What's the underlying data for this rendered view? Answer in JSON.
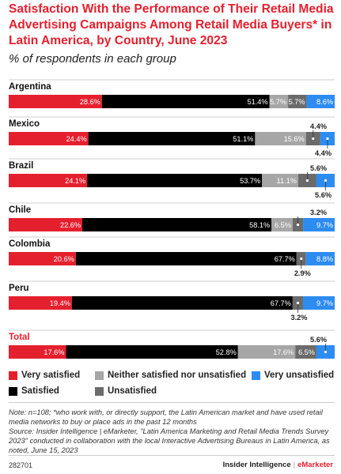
{
  "title": "Satisfaction With the Performance of Their Retail Media Advertising Campaigns Among Retail Media Buyers* in Latin America, by Country, June 2023",
  "subtitle": "% of respondents in each group",
  "colors": {
    "very_satisfied": "#e5202e",
    "satisfied": "#000000",
    "neither": "#a6a6a6",
    "unsatisfied": "#6b6b6b",
    "very_unsatisfied": "#2d8cf0"
  },
  "chart_data": {
    "type": "bar",
    "orientation": "horizontal",
    "stacked": true,
    "categories": [
      "Argentina",
      "Mexico",
      "Brazil",
      "Chile",
      "Colombia",
      "Peru",
      "Total"
    ],
    "series": [
      {
        "name": "Very satisfied",
        "values": [
          28.6,
          24.4,
          24.1,
          22.6,
          20.6,
          19.4,
          17.6
        ]
      },
      {
        "name": "Satisfied",
        "values": [
          51.4,
          51.1,
          53.7,
          58.1,
          67.7,
          67.7,
          52.8
        ]
      },
      {
        "name": "Neither satisfied nor unsatisfied",
        "values": [
          5.7,
          15.6,
          11.1,
          6.5,
          0,
          0,
          17.6
        ]
      },
      {
        "name": "Unsatisfied",
        "values": [
          5.7,
          4.4,
          5.6,
          3.2,
          2.9,
          3.2,
          6.5
        ]
      },
      {
        "name": "Very unsatisfied",
        "values": [
          8.6,
          4.4,
          5.6,
          9.7,
          8.8,
          9.7,
          5.6
        ]
      }
    ],
    "value_labels": [
      [
        "28.6%",
        "51.4%",
        "5.7%",
        "5.7%",
        "8.6%"
      ],
      [
        "24.4%",
        "51.1%",
        "15.6%",
        "4.4%",
        "4.4%"
      ],
      [
        "24.1%",
        "53.7%",
        "11.1%",
        "5.6%",
        "5.6%"
      ],
      [
        "22.6%",
        "58.1%",
        "6.5%",
        "3.2%",
        "9.7%"
      ],
      [
        "20.6%",
        "67.7%",
        "",
        "2.9%",
        "8.8%"
      ],
      [
        "19.4%",
        "67.7%",
        "",
        "3.2%",
        "9.7%"
      ],
      [
        "17.6%",
        "52.8%",
        "17.6%",
        "6.5%",
        "5.6%"
      ]
    ],
    "callouts": [
      null,
      [
        "",
        "",
        "",
        "above",
        "below"
      ],
      [
        "",
        "",
        "",
        "above",
        "below"
      ],
      [
        "",
        "",
        "",
        "above",
        ""
      ],
      [
        "",
        "",
        "",
        "below",
        ""
      ],
      [
        "",
        "",
        "",
        "below",
        ""
      ],
      [
        "",
        "",
        "",
        "",
        "above"
      ]
    ],
    "highlight_category": "Total",
    "xlim": [
      0,
      100
    ],
    "legend_placement": "bottom"
  },
  "legend": [
    {
      "label": "Very satisfied",
      "color": "#e5202e"
    },
    {
      "label": "Neither satisfied nor unsatisfied",
      "color": "#a6a6a6"
    },
    {
      "label": "Very unsatisfied",
      "color": "#2d8cf0"
    },
    {
      "label": "Satisfied",
      "color": "#000000"
    },
    {
      "label": "Unsatisfied",
      "color": "#6b6b6b"
    }
  ],
  "note": "Note: n=108; *who work with, or directly support, the Latin American market and have used retail media networks to buy or place ads in the past 12 months\nSource: Insider Intelligence | eMarketer, \"Latin America Marketing and Retail Media Trends Survey 2023\" conducted in collaboration with the local Interactive Advertising Bureaus in Latin America, as noted, June 15, 2023",
  "footer": {
    "id": "282701",
    "brand_left": "Insider Intelligence",
    "brand_sep": "|",
    "brand_right": "eMarketer"
  }
}
